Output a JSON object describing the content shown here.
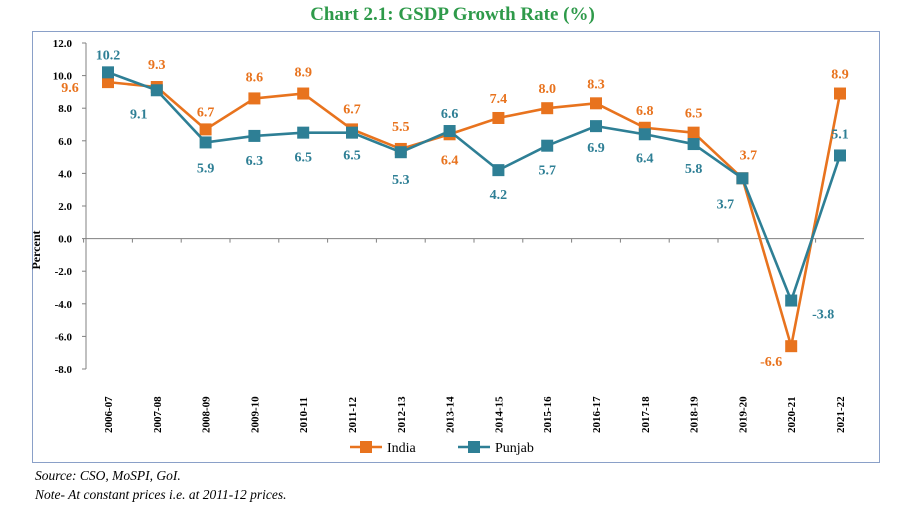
{
  "chart_data": {
    "type": "line",
    "title": "Chart 2.1: GSDP Growth Rate (%)",
    "xlabel": "",
    "ylabel": "Percent",
    "ylim": [
      -8.0,
      12.0
    ],
    "yticks": [
      "12.0",
      "10.0",
      "8.0",
      "6.0",
      "4.0",
      "2.0",
      "0.0",
      "-2.0",
      "-4.0",
      "-6.0",
      "-8.0"
    ],
    "categories": [
      "2006-07",
      "2007-08",
      "2008-09",
      "2009-10",
      "2010-11",
      "2011-12",
      "2012-13",
      "2013-14",
      "2014-15",
      "2015-16",
      "2016-17",
      "2017-18",
      "2018-19",
      "2019-20",
      "2020-21",
      "2021-22"
    ],
    "series": [
      {
        "name": "India",
        "color": "#e8731e",
        "values": [
          9.6,
          9.3,
          6.7,
          8.6,
          8.9,
          6.7,
          5.5,
          6.4,
          7.4,
          8.0,
          8.3,
          6.8,
          6.5,
          3.7,
          -6.6,
          8.9
        ],
        "labels": [
          "9.6",
          "9.3",
          "6.7",
          "8.6",
          "8.9",
          "6.7",
          "5.5",
          "6.4",
          "7.4",
          "8.0",
          "8.3",
          "6.8",
          "6.5",
          "3.7",
          "-6.6",
          "8.9"
        ]
      },
      {
        "name": "Punjab",
        "color": "#2e7f95",
        "values": [
          10.2,
          9.1,
          5.9,
          6.3,
          6.5,
          6.5,
          5.3,
          6.6,
          4.2,
          5.7,
          6.9,
          6.4,
          5.8,
          3.7,
          -3.8,
          5.1
        ],
        "labels": [
          "10.2",
          "9.1",
          "5.9",
          "6.3",
          "6.5",
          "6.5",
          "5.3",
          "6.6",
          "4.2",
          "5.7",
          "6.9",
          "6.4",
          "5.8",
          "3.7",
          "-3.8",
          "5.1"
        ]
      }
    ],
    "legend": "bottom-center",
    "grid": false
  },
  "footer": {
    "source": "Source: CSO, MoSPI, GoI.",
    "note": "Note- At constant prices i.e. at 2011-12 prices."
  }
}
